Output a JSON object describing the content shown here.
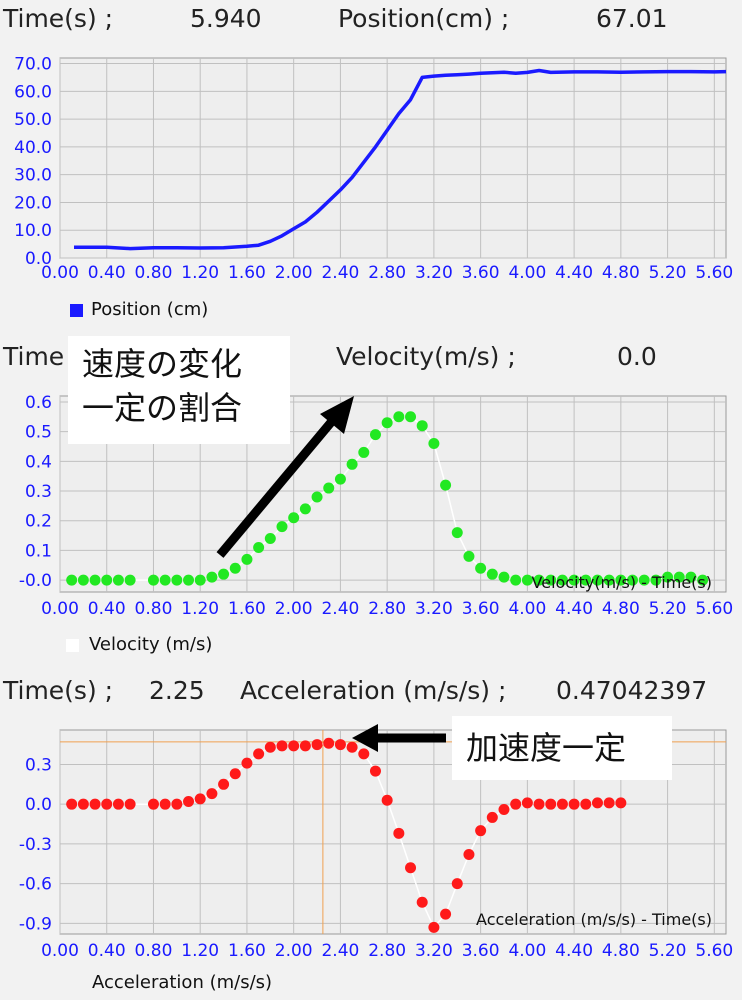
{
  "readouts": {
    "position": {
      "time_label": "Time(s) ;",
      "time_value": "5.940",
      "name": "Position(cm) ;",
      "value": "67.01"
    },
    "velocity": {
      "time_label": "Time",
      "name": "Velocity(m/s) ;",
      "value": "0.0"
    },
    "acceleration": {
      "time_label": "Time(s) ;",
      "time_value": "2.25",
      "name": "Acceleration (m/s/s) ;",
      "value": "0.47042397"
    }
  },
  "annotations": {
    "velocity_callout_line1": "速度の変化",
    "velocity_callout_line2": "一定の割合",
    "acceleration_callout": "加速度一定"
  },
  "colors": {
    "axis_text": "#1a1aff",
    "position": "#1a1aff",
    "velocity": "#22e822",
    "acceleration": "#ff1a1a",
    "cursor": "#f0a050",
    "grid": "#c0c0c0",
    "plot_bg": "#eeeeee"
  },
  "x_tick_labels": [
    "0.00",
    "0.40",
    "0.80",
    "1.20",
    "1.60",
    "2.00",
    "2.40",
    "2.80",
    "3.20",
    "3.60",
    "4.00",
    "4.40",
    "4.80",
    "5.20",
    "5.60"
  ],
  "chart_data": [
    {
      "type": "line",
      "legend": "Position (cm)",
      "xlim": [
        0,
        5.7
      ],
      "ylim": [
        0,
        72
      ],
      "y_tick_values": [
        0,
        10,
        20,
        30,
        40,
        50,
        60,
        70
      ],
      "y_tick_labels": [
        "0.0",
        "10.0",
        "20.0",
        "30.0",
        "40.0",
        "50.0",
        "60.0",
        "70.0"
      ],
      "x": [
        0.12,
        0.4,
        0.6,
        0.8,
        1.0,
        1.2,
        1.4,
        1.6,
        1.7,
        1.8,
        1.9,
        2.0,
        2.1,
        2.2,
        2.3,
        2.4,
        2.5,
        2.6,
        2.7,
        2.8,
        2.9,
        3.0,
        3.1,
        3.2,
        3.3,
        3.4,
        3.5,
        3.6,
        3.7,
        3.8,
        3.9,
        4.0,
        4.1,
        4.2,
        4.4,
        4.6,
        4.8,
        5.0,
        5.2,
        5.4,
        5.6,
        5.7
      ],
      "y": [
        3.9,
        3.9,
        3.4,
        3.7,
        3.7,
        3.6,
        3.7,
        4.2,
        4.6,
        6,
        8,
        10.5,
        13,
        16.5,
        20.5,
        24.5,
        29,
        34.5,
        40,
        46,
        52,
        57,
        65,
        65.5,
        65.8,
        66,
        66.2,
        66.5,
        66.7,
        66.9,
        66.5,
        66.8,
        67.5,
        66.8,
        67,
        67,
        66.9,
        67,
        67.1,
        67.1,
        67,
        67.1
      ]
    },
    {
      "type": "scatter",
      "legend": "Velocity (m/s)",
      "series_label": "Velocity(m/s) - Time(s)",
      "xlim": [
        0,
        5.7
      ],
      "ylim": [
        -0.04,
        0.62
      ],
      "y_tick_values": [
        0,
        0.1,
        0.2,
        0.3,
        0.4,
        0.5,
        0.6
      ],
      "y_tick_labels": [
        "-0.0",
        "0.1",
        "0.2",
        "0.3",
        "0.4",
        "0.5",
        "0.6"
      ],
      "x": [
        0.1,
        0.2,
        0.3,
        0.4,
        0.5,
        0.6,
        0.8,
        0.9,
        1.0,
        1.1,
        1.2,
        1.3,
        1.4,
        1.5,
        1.6,
        1.7,
        1.8,
        1.9,
        2.0,
        2.1,
        2.2,
        2.3,
        2.4,
        2.5,
        2.6,
        2.7,
        2.8,
        2.9,
        3.0,
        3.1,
        3.2,
        3.3,
        3.4,
        3.5,
        3.6,
        3.7,
        3.8,
        3.9,
        4.0,
        4.1,
        4.2,
        4.3,
        4.4,
        4.5,
        4.6,
        4.7,
        4.8,
        4.9,
        5.0,
        5.1,
        5.2,
        5.3,
        5.4,
        5.5
      ],
      "y": [
        0,
        0,
        0,
        0,
        0,
        0,
        0,
        0,
        0,
        0,
        0,
        0.01,
        0.02,
        0.04,
        0.07,
        0.11,
        0.14,
        0.18,
        0.21,
        0.24,
        0.28,
        0.31,
        0.34,
        0.39,
        0.43,
        0.49,
        0.53,
        0.55,
        0.55,
        0.52,
        0.46,
        0.32,
        0.16,
        0.08,
        0.04,
        0.02,
        0.01,
        0,
        0,
        0,
        0,
        0,
        0,
        0,
        0,
        0,
        0,
        0,
        0,
        0,
        0.01,
        0.01,
        0.01,
        0
      ]
    },
    {
      "type": "scatter",
      "legend": "Acceleration (m/s/s)",
      "series_label": "Acceleration (m/s/s) - Time(s)",
      "cursor": {
        "x": 2.25,
        "y": 0.47
      },
      "xlim": [
        0,
        5.7
      ],
      "ylim": [
        -0.98,
        0.56
      ],
      "y_tick_values": [
        0.3,
        0,
        -0.3,
        -0.6,
        -0.9
      ],
      "y_tick_labels": [
        "0.3",
        "0.0",
        "-0.3",
        "-0.6",
        "-0.9"
      ],
      "x": [
        0.1,
        0.2,
        0.3,
        0.4,
        0.5,
        0.6,
        0.8,
        0.9,
        1.0,
        1.1,
        1.2,
        1.3,
        1.4,
        1.5,
        1.6,
        1.7,
        1.8,
        1.9,
        2.0,
        2.1,
        2.2,
        2.3,
        2.4,
        2.5,
        2.6,
        2.7,
        2.8,
        2.9,
        3.0,
        3.1,
        3.2,
        3.3,
        3.4,
        3.5,
        3.6,
        3.7,
        3.8,
        3.9,
        4.0,
        4.1,
        4.2,
        4.3,
        4.4,
        4.5,
        4.6,
        4.7,
        4.8
      ],
      "y": [
        0,
        0,
        0,
        0,
        0,
        0,
        0,
        0,
        0,
        0.02,
        0.04,
        0.08,
        0.15,
        0.23,
        0.31,
        0.38,
        0.43,
        0.44,
        0.44,
        0.44,
        0.45,
        0.46,
        0.45,
        0.43,
        0.38,
        0.25,
        0.03,
        -0.22,
        -0.48,
        -0.74,
        -0.93,
        -0.83,
        -0.6,
        -0.38,
        -0.2,
        -0.1,
        -0.04,
        0,
        0.01,
        0,
        0,
        0,
        0,
        0,
        0.01,
        0.01,
        0.01
      ]
    }
  ]
}
